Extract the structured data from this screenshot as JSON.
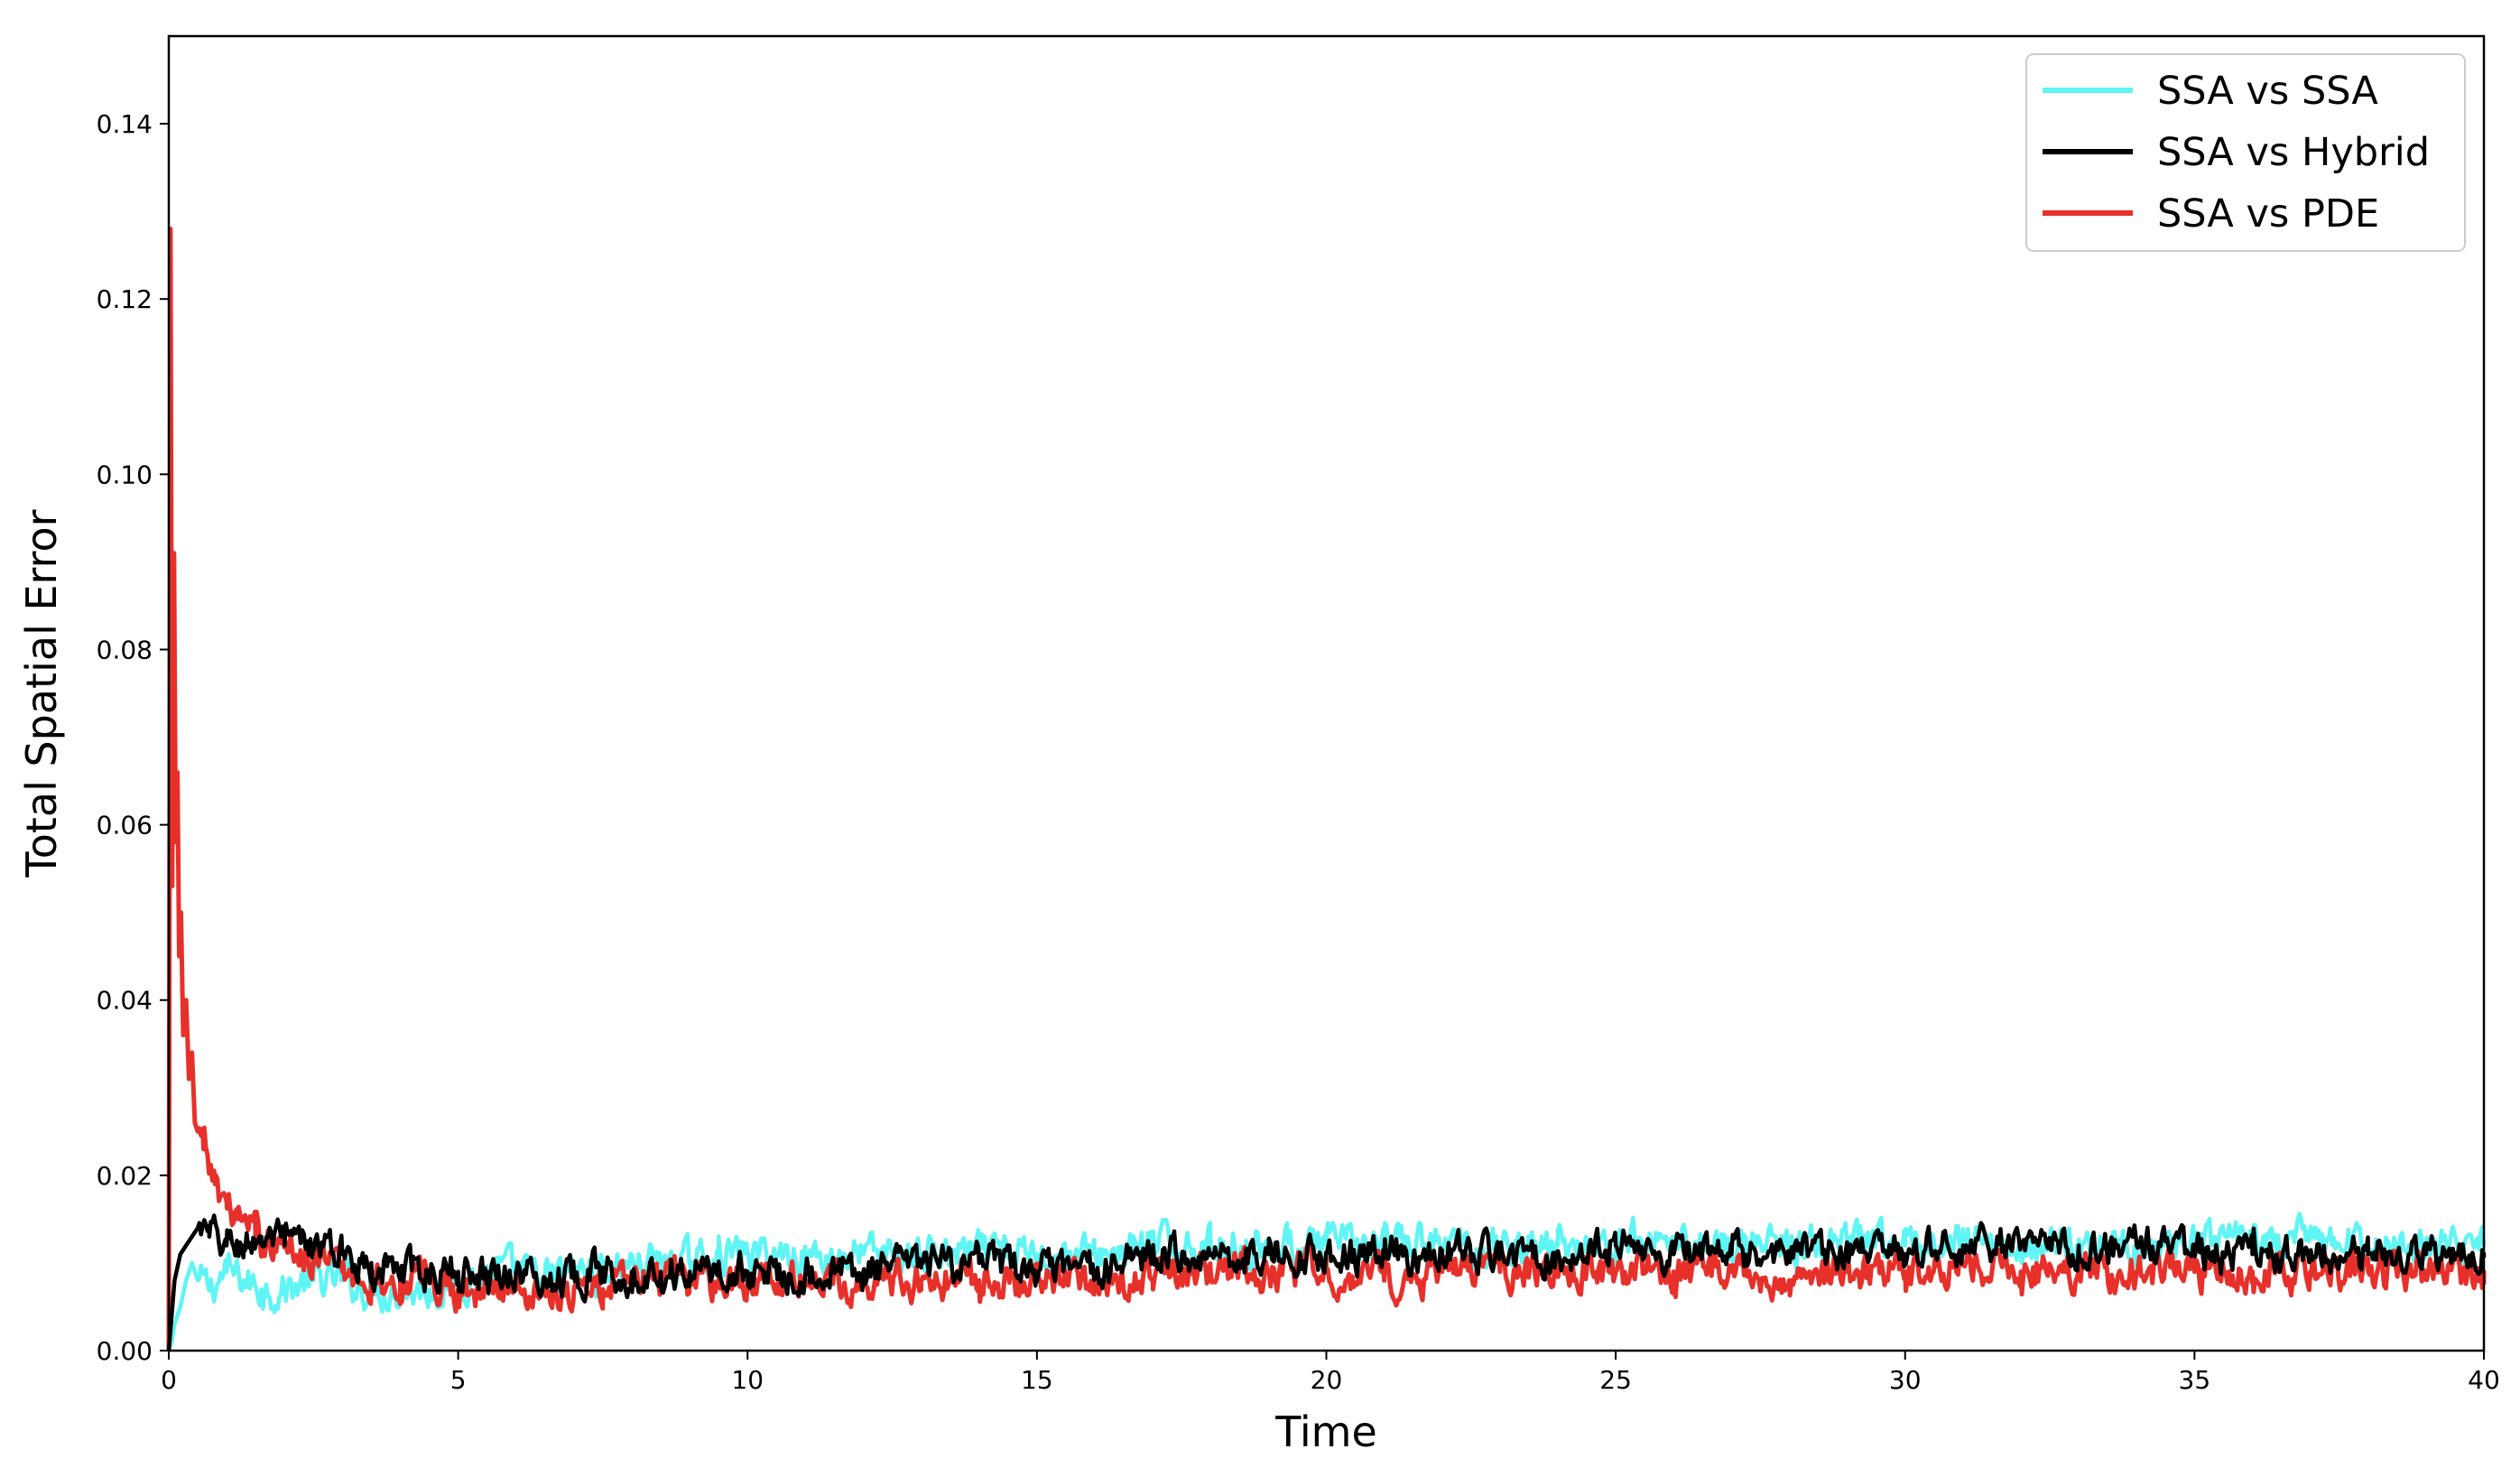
{
  "chart_data": {
    "type": "line",
    "title": "",
    "xlabel": "Time",
    "ylabel": "Total Spatial Error",
    "xlim": [
      0,
      40
    ],
    "ylim": [
      0,
      0.15
    ],
    "xticks": [
      0,
      5,
      10,
      15,
      20,
      25,
      30,
      35,
      40
    ],
    "xtick_labels": [
      "0",
      "5",
      "10",
      "15",
      "20",
      "25",
      "30",
      "35",
      "40"
    ],
    "yticks": [
      0,
      0.02,
      0.04,
      0.06,
      0.08,
      0.1,
      0.12,
      0.14
    ],
    "ytick_labels": [
      "0.00",
      "0.02",
      "0.04",
      "0.06",
      "0.08",
      "0.10",
      "0.12",
      "0.14"
    ],
    "grid": false,
    "legend_position": "top-right",
    "series": [
      {
        "name": "SSA vs SSA",
        "color": "#5ff5f5",
        "x": [
          0,
          0.05,
          0.1,
          0.2,
          0.3,
          0.4,
          0.5,
          0.7,
          1.0,
          1.3,
          1.6,
          2.0,
          2.5,
          3.0,
          3.5,
          4.0,
          4.5,
          5.0,
          5.5,
          6.0,
          6.5,
          7.0,
          7.5,
          8.0,
          8.5,
          9.0,
          9.5,
          10,
          11,
          12,
          13,
          14,
          15,
          16,
          17,
          18,
          19,
          20,
          21,
          22,
          23,
          24,
          25,
          26,
          27,
          28,
          29,
          30,
          31,
          32,
          33,
          34,
          35,
          36,
          37,
          38,
          39,
          40
        ],
        "y": [
          0.0,
          0.001,
          0.003,
          0.005,
          0.008,
          0.01,
          0.008,
          0.007,
          0.009,
          0.008,
          0.007,
          0.007,
          0.008,
          0.008,
          0.007,
          0.007,
          0.007,
          0.008,
          0.009,
          0.009,
          0.008,
          0.009,
          0.009,
          0.01,
          0.01,
          0.01,
          0.011,
          0.011,
          0.011,
          0.011,
          0.011,
          0.011,
          0.011,
          0.011,
          0.012,
          0.012,
          0.012,
          0.012,
          0.012,
          0.012,
          0.012,
          0.012,
          0.012,
          0.013,
          0.012,
          0.012,
          0.012,
          0.012,
          0.012,
          0.012,
          0.012,
          0.012,
          0.012,
          0.012,
          0.013,
          0.012,
          0.012,
          0.012
        ]
      },
      {
        "name": "SSA vs Hybrid",
        "color": "#000000",
        "x": [
          0,
          0.05,
          0.1,
          0.2,
          0.3,
          0.4,
          0.5,
          0.7,
          1.0,
          1.3,
          1.6,
          2.0,
          2.5,
          3.0,
          3.5,
          4.0,
          4.5,
          5.0,
          5.5,
          6.0,
          6.5,
          7.0,
          7.5,
          8.0,
          8.5,
          9.0,
          9.5,
          10,
          11,
          12,
          13,
          14,
          15,
          16,
          17,
          18,
          19,
          20,
          21,
          22,
          23,
          24,
          25,
          26,
          27,
          28,
          29,
          30,
          31,
          32,
          33,
          34,
          35,
          36,
          37,
          38,
          39,
          40
        ],
        "y": [
          0.0,
          0.004,
          0.008,
          0.011,
          0.012,
          0.013,
          0.014,
          0.013,
          0.012,
          0.012,
          0.013,
          0.012,
          0.012,
          0.011,
          0.01,
          0.009,
          0.009,
          0.009,
          0.009,
          0.009,
          0.008,
          0.009,
          0.009,
          0.009,
          0.009,
          0.009,
          0.009,
          0.009,
          0.009,
          0.009,
          0.01,
          0.01,
          0.009,
          0.009,
          0.011,
          0.011,
          0.011,
          0.011,
          0.011,
          0.011,
          0.011,
          0.011,
          0.012,
          0.011,
          0.011,
          0.011,
          0.011,
          0.011,
          0.012,
          0.012,
          0.012,
          0.012,
          0.011,
          0.011,
          0.011,
          0.011,
          0.011,
          0.011
        ]
      },
      {
        "name": "SSA vs PDE",
        "color": "#e8302a",
        "x": [
          0,
          0.03,
          0.06,
          0.09,
          0.12,
          0.15,
          0.18,
          0.21,
          0.25,
          0.3,
          0.35,
          0.4,
          0.45,
          0.5,
          0.6,
          0.7,
          0.8,
          1.0,
          1.2,
          1.5,
          2.0,
          2.5,
          3.0,
          3.5,
          4.0,
          4.5,
          5.0,
          5.5,
          6.0,
          6.5,
          7.0,
          7.5,
          8.0,
          8.5,
          9.0,
          9.5,
          10,
          11,
          12,
          13,
          14,
          15,
          16,
          17,
          18,
          19,
          20,
          21,
          22,
          23,
          24,
          25,
          26,
          27,
          28,
          29,
          30,
          31,
          32,
          33,
          34,
          35,
          36,
          37,
          38,
          39,
          40
        ],
        "y": [
          0.0,
          0.128,
          0.053,
          0.091,
          0.058,
          0.066,
          0.045,
          0.05,
          0.036,
          0.04,
          0.031,
          0.034,
          0.026,
          0.025,
          0.023,
          0.021,
          0.019,
          0.017,
          0.015,
          0.013,
          0.012,
          0.011,
          0.009,
          0.008,
          0.008,
          0.008,
          0.007,
          0.007,
          0.007,
          0.007,
          0.007,
          0.007,
          0.008,
          0.008,
          0.008,
          0.008,
          0.008,
          0.008,
          0.008,
          0.008,
          0.008,
          0.008,
          0.008,
          0.008,
          0.009,
          0.009,
          0.009,
          0.008,
          0.009,
          0.009,
          0.009,
          0.009,
          0.009,
          0.009,
          0.008,
          0.009,
          0.009,
          0.01,
          0.009,
          0.009,
          0.009,
          0.009,
          0.009,
          0.009,
          0.009,
          0.009,
          0.009
        ]
      }
    ]
  }
}
